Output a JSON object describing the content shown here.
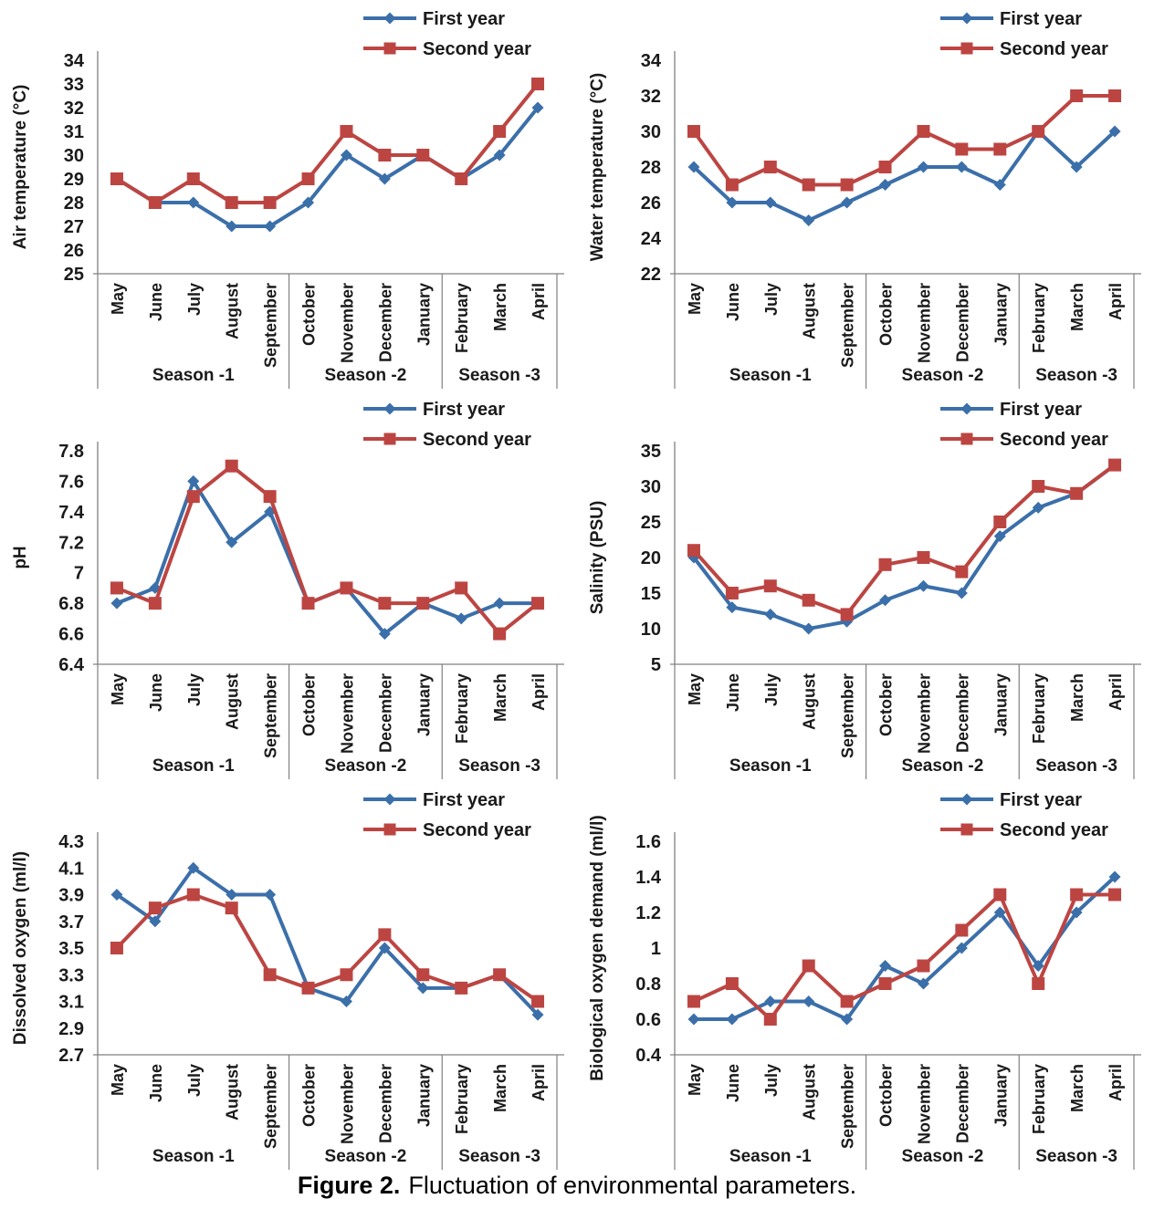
{
  "figure_caption": {
    "label": "Figure 2.",
    "text": "Fluctuation of environmental parameters."
  },
  "style": {
    "first_year_color": "#3B6FAA",
    "second_year_color": "#BC4542",
    "text_color": "#1A1A1A",
    "axis_color": "#808080"
  },
  "seasons": [
    {
      "label": "Season -1",
      "month_span": 5
    },
    {
      "label": "Season -2",
      "month_span": 4
    },
    {
      "label": "Season -3",
      "month_span": 3
    }
  ],
  "chart_data": [
    {
      "type": "line",
      "name": "air-temperature",
      "title": "",
      "xlabel": "",
      "ylabel": "Air temperature (°C)",
      "ylim": [
        25,
        34
      ],
      "ystep": 1,
      "grid": false,
      "legend_position": "top-right",
      "categories": [
        "May",
        "June",
        "July",
        "August",
        "September",
        "October",
        "November",
        "December",
        "January",
        "February",
        "March",
        "April"
      ],
      "series": [
        {
          "name": "First year",
          "marker": "diamond",
          "color": "#3B6FAA",
          "values": [
            29,
            28,
            28,
            27,
            27,
            28,
            30,
            29,
            30,
            29,
            30,
            32
          ]
        },
        {
          "name": "Second year",
          "marker": "square",
          "color": "#BC4542",
          "values": [
            29,
            28,
            29,
            28,
            28,
            29,
            31,
            30,
            30,
            29,
            31,
            33
          ]
        }
      ]
    },
    {
      "type": "line",
      "name": "water-temperature",
      "title": "",
      "xlabel": "",
      "ylabel": "Water temperature (°C)",
      "ylim": [
        22,
        34
      ],
      "ystep": 2,
      "grid": false,
      "legend_position": "top-right",
      "categories": [
        "May",
        "June",
        "July",
        "August",
        "September",
        "October",
        "November",
        "December",
        "January",
        "February",
        "March",
        "April"
      ],
      "series": [
        {
          "name": "First year",
          "marker": "diamond",
          "color": "#3B6FAA",
          "values": [
            28,
            26,
            26,
            25,
            26,
            27,
            28,
            28,
            27,
            30,
            28,
            30
          ]
        },
        {
          "name": "Second year",
          "marker": "square",
          "color": "#BC4542",
          "values": [
            30,
            27,
            28,
            27,
            27,
            28,
            30,
            29,
            29,
            30,
            32,
            32
          ]
        }
      ]
    },
    {
      "type": "line",
      "name": "ph",
      "title": "",
      "xlabel": "",
      "ylabel": "pH",
      "ylim": [
        6.4,
        7.8
      ],
      "ystep": 0.2,
      "grid": false,
      "legend_position": "top-right",
      "categories": [
        "May",
        "June",
        "July",
        "August",
        "September",
        "October",
        "November",
        "December",
        "January",
        "February",
        "March",
        "April"
      ],
      "series": [
        {
          "name": "First year",
          "marker": "diamond",
          "color": "#3B6FAA",
          "values": [
            6.8,
            6.9,
            7.6,
            7.2,
            7.4,
            6.8,
            6.9,
            6.6,
            6.8,
            6.7,
            6.8,
            6.8
          ]
        },
        {
          "name": "Second year",
          "marker": "square",
          "color": "#BC4542",
          "values": [
            6.9,
            6.8,
            7.5,
            7.7,
            7.5,
            6.8,
            6.9,
            6.8,
            6.8,
            6.9,
            6.6,
            6.8
          ]
        }
      ]
    },
    {
      "type": "line",
      "name": "salinity",
      "title": "",
      "xlabel": "",
      "ylabel": "Salinity (PSU)",
      "ylim": [
        5,
        35
      ],
      "ystep": 5,
      "grid": false,
      "legend_position": "top-right",
      "categories": [
        "May",
        "June",
        "July",
        "August",
        "September",
        "October",
        "November",
        "December",
        "January",
        "February",
        "March",
        "April"
      ],
      "series": [
        {
          "name": "First year",
          "marker": "diamond",
          "color": "#3B6FAA",
          "values": [
            20,
            13,
            12,
            10,
            11,
            14,
            16,
            15,
            23,
            27,
            29,
            33
          ]
        },
        {
          "name": "Second year",
          "marker": "square",
          "color": "#BC4542",
          "values": [
            21,
            15,
            16,
            14,
            12,
            19,
            20,
            18,
            25,
            30,
            29,
            33
          ]
        }
      ]
    },
    {
      "type": "line",
      "name": "dissolved-oxygen",
      "title": "",
      "xlabel": "",
      "ylabel": "Dissolved oxygen (ml/l)",
      "ylim": [
        2.7,
        4.3
      ],
      "ystep": 0.2,
      "grid": false,
      "legend_position": "top-right",
      "categories": [
        "May",
        "June",
        "July",
        "August",
        "September",
        "October",
        "November",
        "December",
        "January",
        "February",
        "March",
        "April"
      ],
      "series": [
        {
          "name": "First year",
          "marker": "diamond",
          "color": "#3B6FAA",
          "values": [
            3.9,
            3.7,
            4.1,
            3.9,
            3.9,
            3.2,
            3.1,
            3.5,
            3.2,
            3.2,
            3.3,
            3.0
          ]
        },
        {
          "name": "Second year",
          "marker": "square",
          "color": "#BC4542",
          "values": [
            3.5,
            3.8,
            3.9,
            3.8,
            3.3,
            3.2,
            3.3,
            3.6,
            3.3,
            3.2,
            3.3,
            3.1
          ]
        }
      ]
    },
    {
      "type": "line",
      "name": "biological-oxygen-demand",
      "title": "",
      "xlabel": "",
      "ylabel": "Biological oxygen demand (ml/l)",
      "ylim": [
        0.4,
        1.6
      ],
      "ystep": 0.2,
      "grid": false,
      "legend_position": "top-right",
      "categories": [
        "May",
        "June",
        "July",
        "August",
        "September",
        "October",
        "November",
        "December",
        "January",
        "February",
        "March",
        "April"
      ],
      "series": [
        {
          "name": "First year",
          "marker": "diamond",
          "color": "#3B6FAA",
          "values": [
            0.6,
            0.6,
            0.7,
            0.7,
            0.6,
            0.9,
            0.8,
            1.0,
            1.2,
            0.9,
            1.2,
            1.4
          ]
        },
        {
          "name": "Second year",
          "marker": "square",
          "color": "#BC4542",
          "values": [
            0.7,
            0.8,
            0.6,
            0.9,
            0.7,
            0.8,
            0.9,
            1.1,
            1.3,
            0.8,
            1.3,
            1.3
          ]
        }
      ]
    }
  ]
}
